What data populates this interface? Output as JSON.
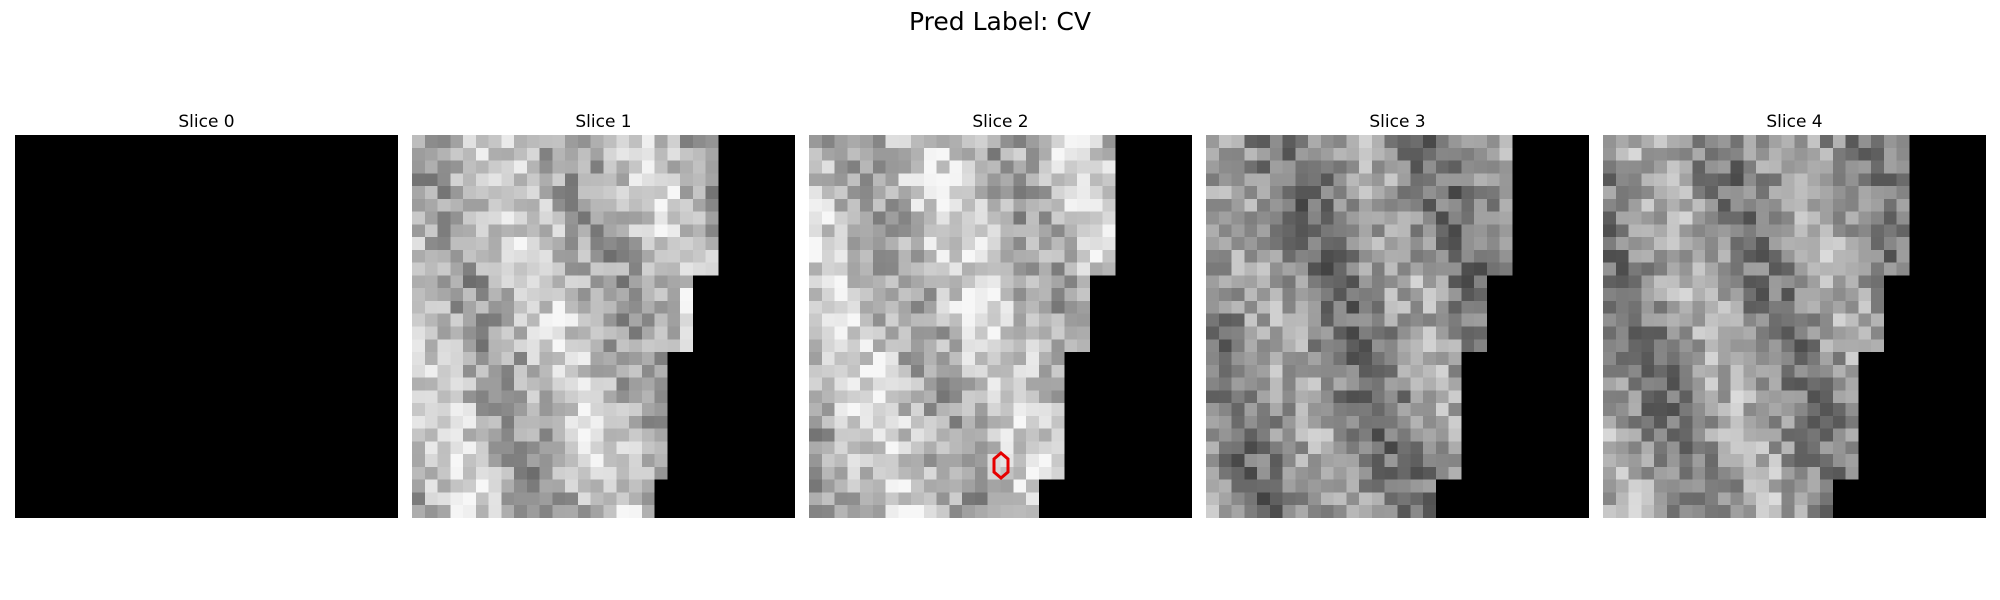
{
  "figure": {
    "title": "Pred Label: CV"
  },
  "slices": [
    {
      "label": "Slice 0",
      "kind": "blank",
      "seed": 0,
      "base_level": 0.0,
      "has_marker": false
    },
    {
      "label": "Slice 1",
      "kind": "tissue",
      "seed": 11,
      "base_level": 0.72,
      "has_marker": false
    },
    {
      "label": "Slice 2",
      "kind": "tissue",
      "seed": 22,
      "base_level": 0.74,
      "has_marker": true
    },
    {
      "label": "Slice 3",
      "kind": "tissue",
      "seed": 33,
      "base_level": 0.55,
      "has_marker": false
    },
    {
      "label": "Slice 4",
      "kind": "tissue",
      "seed": 44,
      "base_level": 0.58,
      "has_marker": false
    }
  ],
  "marker": {
    "color": "#e60000",
    "shape": "hexagon"
  }
}
